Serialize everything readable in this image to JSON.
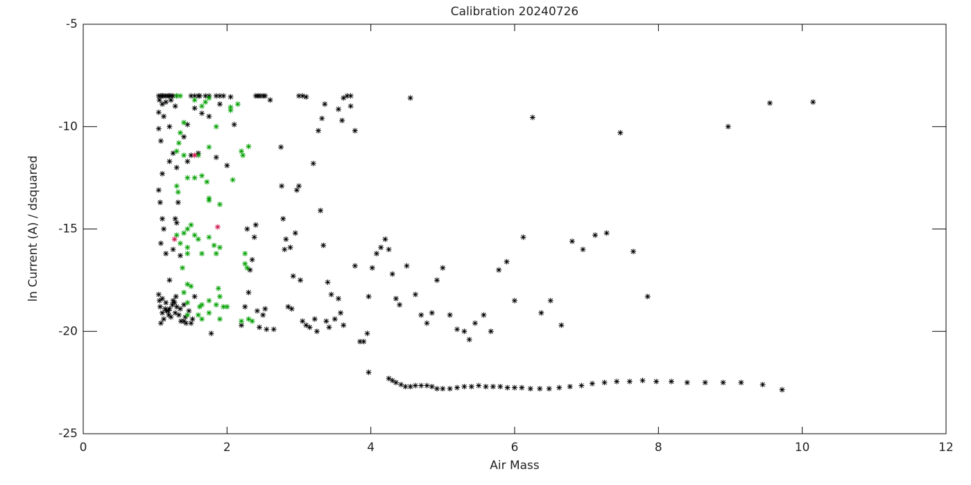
{
  "chart_data": {
    "type": "scatter",
    "title": "Calibration 20240726",
    "xlabel": "Air Mass",
    "ylabel": "ln Current (A) / dsquared",
    "xlim": [
      0,
      12
    ],
    "ylim": [
      -25,
      -5
    ],
    "xticks": [
      0,
      2,
      4,
      6,
      8,
      10,
      12
    ],
    "yticks": [
      -25,
      -20,
      -15,
      -10,
      -5
    ],
    "marker": "asterisk",
    "series": [
      {
        "color": "#000000",
        "x": [
          1.05,
          1.08,
          1.1,
          1.12,
          1.15,
          1.18,
          1.2,
          1.22,
          1.25,
          1.3,
          1.5,
          1.55,
          1.6,
          1.62,
          1.7,
          1.75,
          1.85,
          1.9,
          1.95,
          2.05,
          2.4,
          2.43,
          2.46,
          2.5,
          2.53,
          2.6,
          3.0,
          3.05,
          3.1,
          3.62,
          3.67,
          3.72,
          1.06,
          1.1,
          1.15,
          1.22,
          1.28,
          1.05,
          1.12,
          1.05,
          1.08,
          1.1,
          1.05,
          1.07,
          1.1,
          1.12,
          1.08,
          1.15,
          1.2,
          1.25,
          1.28,
          1.3,
          1.25,
          1.32,
          1.35,
          1.4,
          1.45,
          1.2,
          1.2,
          1.3,
          1.45,
          1.5,
          1.55,
          1.6,
          1.65,
          1.75,
          1.85,
          1.9,
          1.78,
          1.5,
          1.55,
          1.4,
          1.05,
          1.07,
          1.1,
          1.12,
          1.15,
          1.18,
          1.2,
          1.22,
          1.25,
          1.28,
          1.3,
          1.33,
          1.36,
          1.4,
          1.43,
          1.47,
          1.52,
          1.06,
          1.1,
          1.14,
          1.19,
          1.24,
          1.29,
          1.35,
          1.42,
          1.08,
          1.16,
          1.27,
          2.0,
          2.1,
          2.2,
          2.25,
          2.28,
          2.3,
          2.32,
          2.35,
          2.38,
          2.4,
          2.42,
          2.45,
          2.5,
          2.53,
          2.55,
          2.65,
          2.75,
          2.76,
          2.78,
          2.8,
          2.82,
          2.85,
          2.88,
          2.9,
          2.92,
          2.95,
          2.97,
          3.0,
          3.02,
          3.05,
          3.1,
          3.15,
          3.2,
          3.22,
          3.25,
          3.27,
          3.3,
          3.32,
          3.34,
          3.36,
          3.38,
          3.4,
          3.42,
          3.45,
          3.5,
          3.55,
          3.58,
          3.62,
          3.55,
          3.6,
          3.72,
          3.78,
          3.78,
          3.97,
          4.02,
          4.08,
          4.14,
          4.2,
          4.25,
          4.3,
          4.35,
          4.4,
          4.5,
          4.62,
          4.7,
          4.78,
          4.85,
          4.92,
          5.0,
          5.1,
          5.2,
          5.3,
          5.37,
          5.45,
          5.57,
          5.67,
          5.78,
          5.89,
          6.0,
          6.12,
          6.37,
          6.5,
          6.65,
          6.8,
          6.95,
          7.12,
          7.28,
          7.65,
          7.85,
          3.85,
          3.9,
          3.95,
          4.55,
          6.25,
          7.47,
          8.97,
          9.55,
          10.15,
          3.97,
          4.25,
          4.3,
          4.35,
          4.42,
          4.48,
          4.55,
          4.62,
          4.7,
          4.78,
          4.85,
          4.92,
          5.0,
          5.1,
          5.2,
          5.3,
          5.4,
          5.5,
          5.6,
          5.7,
          5.8,
          5.9,
          6.0,
          6.1,
          6.22,
          6.35,
          6.48,
          6.62,
          6.77,
          6.93,
          7.08,
          7.25,
          7.42,
          7.6,
          7.78,
          7.97,
          8.18,
          8.4,
          8.65,
          8.9,
          9.15,
          9.45,
          9.72
        ],
        "y": [
          -8.5,
          -8.5,
          -8.5,
          -8.5,
          -8.5,
          -8.5,
          -8.5,
          -8.5,
          -8.5,
          -8.5,
          -8.5,
          -8.5,
          -8.5,
          -8.5,
          -8.5,
          -8.5,
          -8.5,
          -8.5,
          -8.5,
          -8.55,
          -8.5,
          -8.5,
          -8.5,
          -8.5,
          -8.5,
          -8.7,
          -8.5,
          -8.5,
          -8.55,
          -8.6,
          -8.5,
          -8.5,
          -8.7,
          -8.9,
          -8.8,
          -8.7,
          -9.0,
          -9.3,
          -9.5,
          -10.1,
          -10.7,
          -12.3,
          -13.1,
          -13.7,
          -14.5,
          -15.0,
          -15.7,
          -16.2,
          -17.5,
          -11.3,
          -14.5,
          -14.7,
          -16.0,
          -13.7,
          -16.3,
          -10.5,
          -11.7,
          -10.0,
          -11.7,
          -12.0,
          -9.9,
          -11.4,
          -9.1,
          -11.3,
          -9.35,
          -9.5,
          -11.5,
          -8.9,
          -20.1,
          -19.6,
          -18.3,
          -19.5,
          -18.2,
          -18.8,
          -19.1,
          -19.4,
          -18.6,
          -19.0,
          -18.9,
          -19.3,
          -18.5,
          -19.1,
          -18.8,
          -19.2,
          -19.5,
          -18.7,
          -19.6,
          -19.0,
          -19.4,
          -18.5,
          -18.4,
          -18.9,
          -19.2,
          -18.7,
          -18.3,
          -18.9,
          -19.3,
          -19.6,
          -19.0,
          -18.6,
          -11.9,
          -9.9,
          -19.7,
          -18.8,
          -15.0,
          -18.1,
          -17.0,
          -16.5,
          -15.4,
          -14.8,
          -19.0,
          -19.8,
          -19.2,
          -18.9,
          -19.9,
          -19.9,
          -11.0,
          -12.9,
          -14.5,
          -16.0,
          -15.5,
          -18.8,
          -15.9,
          -18.9,
          -17.3,
          -15.2,
          -13.1,
          -12.9,
          -17.5,
          -19.5,
          -19.7,
          -19.8,
          -11.8,
          -19.4,
          -20.0,
          -10.2,
          -14.1,
          -9.6,
          -15.8,
          -8.9,
          -19.5,
          -17.6,
          -19.8,
          -18.2,
          -19.4,
          -18.4,
          -19.1,
          -19.7,
          -9.15,
          -9.7,
          -9.0,
          -10.2,
          -16.8,
          -18.3,
          -16.9,
          -16.2,
          -15.9,
          -15.5,
          -16.0,
          -17.2,
          -18.4,
          -18.7,
          -16.8,
          -18.2,
          -19.2,
          -19.6,
          -19.1,
          -17.5,
          -16.9,
          -19.2,
          -19.9,
          -20.0,
          -20.4,
          -19.6,
          -19.2,
          -20.0,
          -17.0,
          -16.6,
          -18.5,
          -15.4,
          -19.1,
          -18.5,
          -19.7,
          -15.6,
          -16.0,
          -15.3,
          -15.2,
          -16.1,
          -18.3,
          -20.5,
          -20.5,
          -20.1,
          -8.6,
          -9.55,
          -10.3,
          -10.0,
          -8.85,
          -8.8,
          -22.0,
          -22.3,
          -22.4,
          -22.5,
          -22.6,
          -22.7,
          -22.7,
          -22.65,
          -22.65,
          -22.65,
          -22.7,
          -22.8,
          -22.8,
          -22.8,
          -22.75,
          -22.7,
          -22.7,
          -22.65,
          -22.7,
          -22.7,
          -22.7,
          -22.75,
          -22.75,
          -22.75,
          -22.8,
          -22.8,
          -22.8,
          -22.75,
          -22.7,
          -22.65,
          -22.55,
          -22.5,
          -22.45,
          -22.45,
          -22.4,
          -22.45,
          -22.45,
          -22.5,
          -22.5,
          -22.5,
          -22.5,
          -22.6,
          -22.85
        ]
      },
      {
        "color": "#00a000",
        "x": [
          1.3,
          1.35,
          1.55,
          1.65,
          1.7,
          1.75,
          1.85,
          2.05,
          2.05,
          2.15,
          1.4,
          1.35,
          1.33,
          1.3,
          1.4,
          1.6,
          1.75,
          2.2,
          2.22,
          2.3,
          2.08,
          1.45,
          1.55,
          1.65,
          1.72,
          1.3,
          1.32,
          1.75,
          1.75,
          1.9,
          1.3,
          1.4,
          1.45,
          1.5,
          1.35,
          1.45,
          1.45,
          1.55,
          1.6,
          1.65,
          1.75,
          1.82,
          1.85,
          1.9,
          1.38,
          2.25,
          2.25,
          2.28,
          1.45,
          1.5,
          1.4,
          1.88,
          1.9,
          1.45,
          1.62,
          1.65,
          1.75,
          1.85,
          1.95,
          2.0,
          1.45,
          1.6,
          1.65,
          1.75,
          1.9,
          2.3,
          2.35,
          2.2
        ],
        "y": [
          -8.5,
          -8.5,
          -8.7,
          -9.0,
          -8.8,
          -8.6,
          -10.0,
          -9.2,
          -9.05,
          -8.9,
          -9.8,
          -10.3,
          -10.8,
          -11.2,
          -11.4,
          -11.4,
          -11.0,
          -11.2,
          -11.4,
          -10.97,
          -12.6,
          -12.5,
          -12.5,
          -12.4,
          -12.7,
          -12.9,
          -13.2,
          -13.6,
          -13.5,
          -13.8,
          -15.3,
          -15.2,
          -15.0,
          -14.8,
          -15.7,
          -15.9,
          -16.2,
          -15.3,
          -15.5,
          -16.2,
          -15.4,
          -15.8,
          -16.2,
          -15.9,
          -16.9,
          -16.2,
          -16.7,
          -16.9,
          -17.7,
          -17.8,
          -18.1,
          -17.9,
          -18.3,
          -18.6,
          -18.8,
          -18.7,
          -18.5,
          -18.7,
          -18.8,
          -18.8,
          -19.2,
          -19.2,
          -19.4,
          -19.1,
          -19.4,
          -19.4,
          -19.5,
          -19.5
        ]
      },
      {
        "color": "#d0104a",
        "x": [
          1.55,
          1.87,
          1.27
        ],
        "y": [
          -11.4,
          -14.9,
          -15.5
        ]
      }
    ]
  }
}
